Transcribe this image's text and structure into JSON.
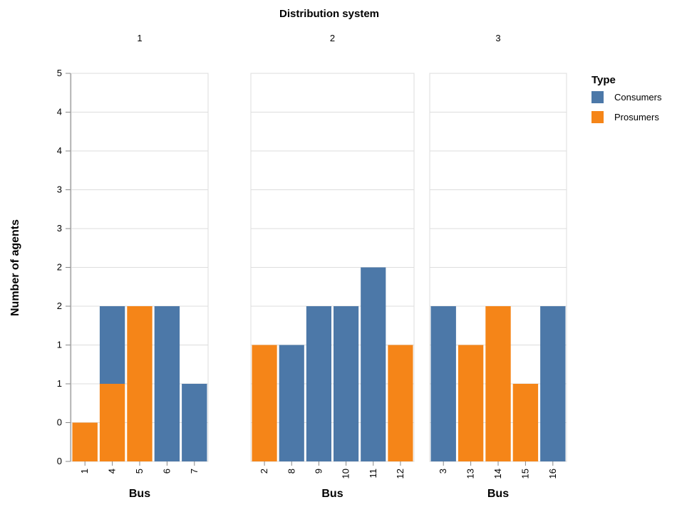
{
  "chart_data": {
    "type": "bar",
    "stacked": true,
    "title": "Distribution system",
    "xlabel": "Bus",
    "ylabel": "Number of agents",
    "ylim": [
      0,
      10
    ],
    "y_tick_labels": [
      "0",
      "0",
      "1",
      "1",
      "2",
      "2",
      "3",
      "3",
      "4",
      "4",
      "5"
    ],
    "grid": true,
    "legend": {
      "title": "Type",
      "placement": "right",
      "entries": [
        {
          "name": "Consumers",
          "color": "#4c78a8"
        },
        {
          "name": "Prosumers",
          "color": "#f58518"
        }
      ]
    },
    "facets": [
      {
        "label": "1",
        "categories": [
          "1",
          "4",
          "5",
          "6",
          "7"
        ],
        "series": [
          {
            "name": "Prosumers",
            "values": [
              1,
              2,
              4,
              0,
              0
            ]
          },
          {
            "name": "Consumers",
            "values": [
              0,
              2,
              0,
              4,
              2
            ]
          }
        ]
      },
      {
        "label": "2",
        "categories": [
          "2",
          "8",
          "9",
          "10",
          "11",
          "12"
        ],
        "series": [
          {
            "name": "Prosumers",
            "values": [
              3,
              0,
              0,
              0,
              0,
              3
            ]
          },
          {
            "name": "Consumers",
            "values": [
              0,
              3,
              4,
              4,
              5,
              0
            ]
          }
        ]
      },
      {
        "label": "3",
        "categories": [
          "3",
          "13",
          "14",
          "15",
          "16"
        ],
        "series": [
          {
            "name": "Prosumers",
            "values": [
              0,
              3,
              4,
              2,
              0
            ]
          },
          {
            "name": "Consumers",
            "values": [
              4,
              0,
              0,
              0,
              4
            ]
          }
        ]
      }
    ]
  }
}
